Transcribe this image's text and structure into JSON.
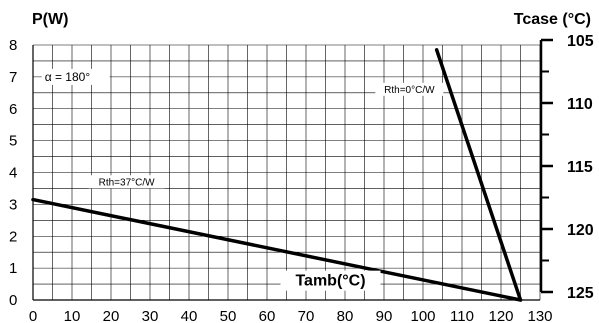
{
  "chart_data": {
    "type": "line",
    "title": "",
    "left_axis": {
      "label": "P(W)",
      "range": [
        0,
        8
      ],
      "ticks": [
        "0",
        "1",
        "2",
        "3",
        "4",
        "5",
        "6",
        "7",
        "8"
      ]
    },
    "right_axis": {
      "label": "Tcase (°C)",
      "ticks": [
        "105",
        "110",
        "115",
        "120",
        "125"
      ]
    },
    "x_axis": {
      "label": "Tamb(°C)",
      "range": [
        0,
        130
      ],
      "ticks": [
        "0",
        "10",
        "20",
        "30",
        "40",
        "50",
        "60",
        "70",
        "80",
        "90",
        "100",
        "110",
        "120",
        "130"
      ]
    },
    "grid": true,
    "series": [
      {
        "name": "Rth=37°C/W",
        "x": [
          0,
          125
        ],
        "y": [
          3.15,
          0
        ]
      },
      {
        "name": "Rth=0°C/W",
        "x": [
          103.5,
          125
        ],
        "y": [
          7.85,
          0
        ]
      }
    ],
    "annotations": {
      "alpha": "α = 180°"
    }
  }
}
